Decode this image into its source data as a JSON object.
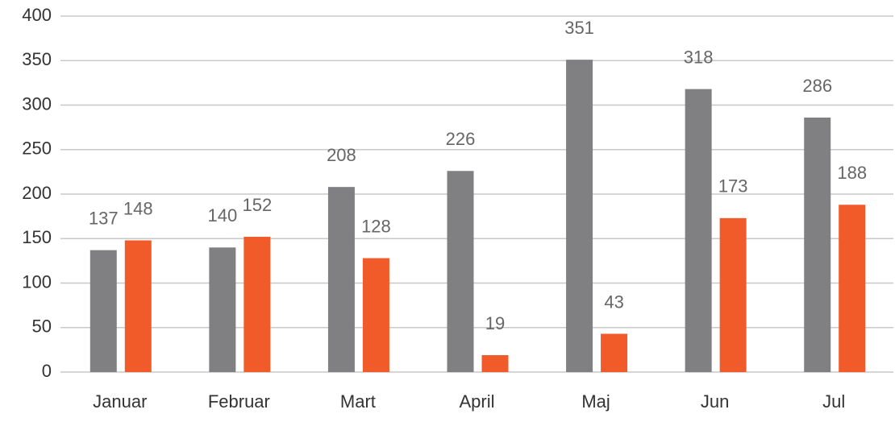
{
  "chart_data": {
    "type": "bar",
    "categories": [
      "Januar",
      "Februar",
      "Mart",
      "April",
      "Maj",
      "Jun",
      "Jul"
    ],
    "series": [
      {
        "color": "#808083",
        "values": [
          137,
          140,
          208,
          226,
          351,
          318,
          286
        ]
      },
      {
        "color": "#f15a29",
        "values": [
          148,
          152,
          128,
          19,
          43,
          173,
          188
        ]
      }
    ],
    "ylim": [
      0,
      400
    ],
    "yticks": [
      0,
      50,
      100,
      150,
      200,
      250,
      300,
      350,
      400
    ],
    "grid": true
  }
}
